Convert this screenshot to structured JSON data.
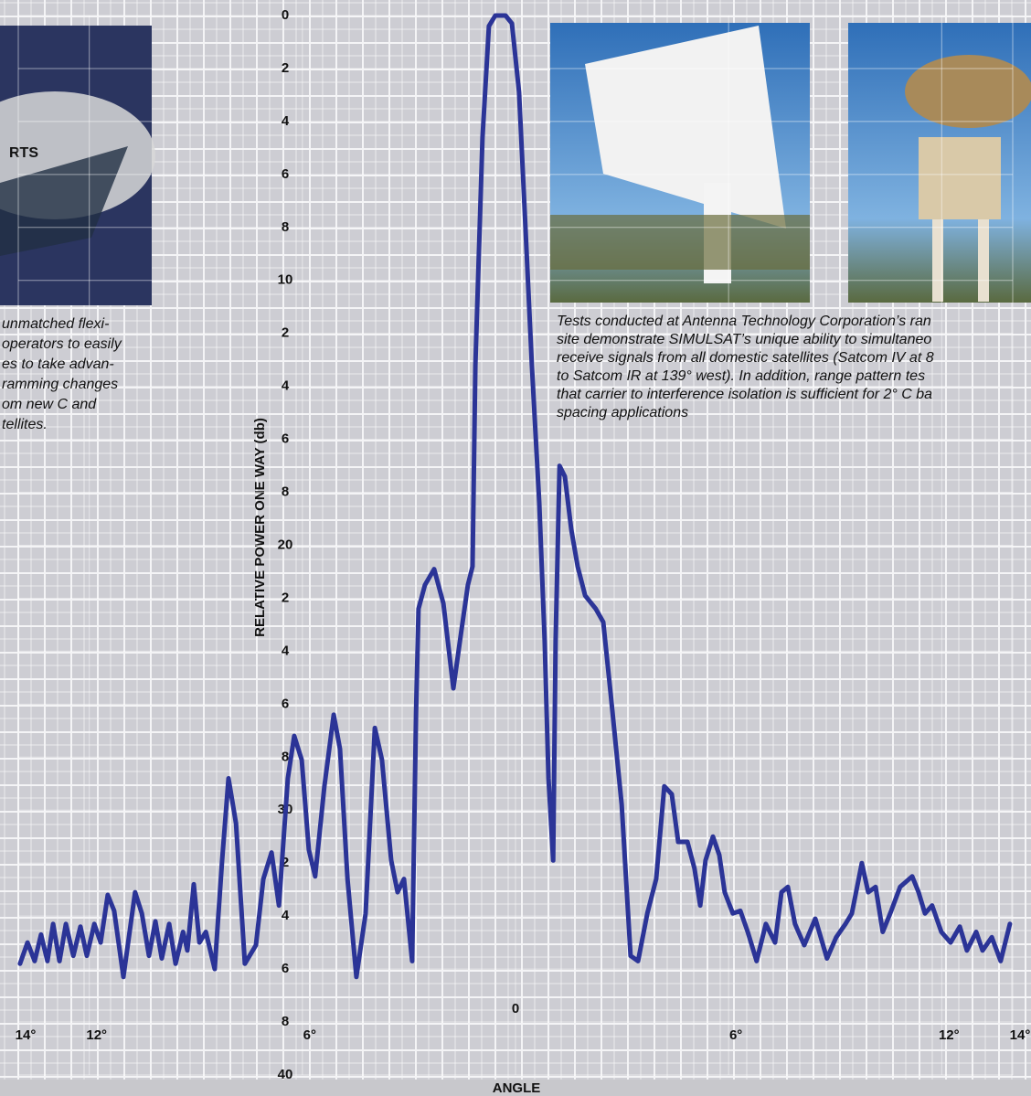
{
  "chart_data": {
    "type": "line",
    "xlabel": "ANGLE",
    "ylabel": "RELATIVE POWER ONE WAY (db)",
    "x": [
      -13.95,
      -13.74,
      -13.54,
      -13.36,
      -13.18,
      -13.02,
      -12.84,
      -12.66,
      -12.45,
      -12.25,
      -12.07,
      -11.86,
      -11.68,
      -11.48,
      -11.3,
      -11.04,
      -10.71,
      -10.52,
      -10.32,
      -10.14,
      -9.96,
      -9.75,
      -9.57,
      -9.36,
      -9.24,
      -9.06,
      -8.9,
      -8.72,
      -8.47,
      -8.26,
      -8.08,
      -7.87,
      -7.62,
      -7.31,
      -7.1,
      -6.87,
      -6.66,
      -6.41,
      -6.23,
      -6.02,
      -5.82,
      -5.64,
      -5.38,
      -5.12,
      -4.94,
      -4.73,
      -4.48,
      -4.22,
      -3.96,
      -3.76,
      -3.5,
      -3.32,
      -3.14,
      -2.91,
      -2.8,
      -2.73,
      -2.55,
      -2.29,
      -2.03,
      -1.75,
      -1.52,
      -1.34,
      -1.21,
      -1.13,
      -0.93,
      -0.75,
      -0.57,
      -0.28,
      -0.1,
      0.1,
      0.28,
      0.46,
      0.67,
      0.82,
      0.93,
      1.06,
      1.13,
      1.24,
      1.39,
      1.57,
      1.75,
      1.96,
      2.26,
      2.47,
      2.68,
      2.99,
      3.24,
      3.45,
      3.71,
      3.96,
      4.19,
      4.4,
      4.58,
      4.84,
      5.04,
      5.2,
      5.35,
      5.56,
      5.74,
      5.89,
      6.12,
      6.33,
      6.54,
      6.79,
      7.05,
      7.31,
      7.49,
      7.67,
      7.87,
      8.13,
      8.44,
      8.77,
      9.03,
      9.29,
      9.47,
      9.75,
      9.93,
      10.14,
      10.34,
      10.58,
      10.83,
      11.17,
      11.35,
      11.53,
      11.73,
      11.99,
      12.25,
      12.51,
      12.71,
      12.97,
      13.15,
      13.41,
      13.66,
      13.92
    ],
    "series": [
      {
        "color": "#2b3497",
        "values": [
          35.8,
          35.0,
          35.7,
          34.7,
          35.7,
          34.3,
          35.7,
          34.3,
          35.5,
          34.4,
          35.5,
          34.3,
          35.0,
          33.2,
          33.8,
          36.3,
          33.1,
          33.9,
          35.5,
          34.2,
          35.6,
          34.3,
          35.8,
          34.6,
          35.3,
          32.8,
          35.0,
          34.6,
          36.0,
          31.9,
          28.8,
          30.5,
          35.8,
          35.1,
          32.6,
          31.6,
          33.6,
          28.8,
          27.2,
          28.1,
          31.5,
          32.5,
          29.1,
          26.4,
          27.7,
          32.6,
          36.3,
          33.9,
          26.9,
          28.1,
          31.9,
          33.1,
          32.6,
          35.7,
          26.3,
          22.4,
          21.5,
          20.9,
          22.2,
          25.4,
          23.2,
          21.5,
          20.8,
          13.2,
          4.6,
          0.4,
          0,
          0,
          0.3,
          2.9,
          8.0,
          13.2,
          18.4,
          23.6,
          28.8,
          31.9,
          23.6,
          17.0,
          17.4,
          19.4,
          20.8,
          21.9,
          22.4,
          22.9,
          25.6,
          29.8,
          35.5,
          35.7,
          33.9,
          32.6,
          29.1,
          29.4,
          31.2,
          31.2,
          32.2,
          33.6,
          31.9,
          31.0,
          31.7,
          33.1,
          33.9,
          33.8,
          34.6,
          35.7,
          34.3,
          35.0,
          33.1,
          32.9,
          34.3,
          35.1,
          34.1,
          35.6,
          34.8,
          34.3,
          33.9,
          32.0,
          33.1,
          32.9,
          34.6,
          33.8,
          32.9,
          32.5,
          33.1,
          33.9,
          33.6,
          34.6,
          35.0,
          34.4,
          35.3,
          34.6,
          35.3,
          34.8,
          35.7,
          34.3
        ]
      }
    ],
    "xlim": [
      -14,
      14
    ],
    "xticks": [
      {
        "value": -14,
        "label": "14°"
      },
      {
        "value": -12,
        "label": "12°"
      },
      {
        "value": -6,
        "label": "6°"
      },
      0,
      {
        "value": 6,
        "label": "6°"
      },
      {
        "value": 12,
        "label": "12°"
      },
      {
        "value": 14,
        "label": "14°"
      }
    ],
    "ylim": [
      0,
      40
    ],
    "y_reversed": true,
    "yticks": [
      0,
      2,
      4,
      6,
      8,
      10,
      {
        "value": 12,
        "label": "2"
      },
      {
        "value": 14,
        "label": "4"
      },
      {
        "value": 16,
        "label": "6"
      },
      {
        "value": 18,
        "label": "8"
      },
      20,
      {
        "value": 22,
        "label": "2"
      },
      {
        "value": 24,
        "label": "4"
      },
      {
        "value": 26,
        "label": "6"
      },
      {
        "value": 28,
        "label": "8"
      },
      30,
      {
        "value": 32,
        "label": "2"
      },
      {
        "value": 34,
        "label": "4"
      },
      {
        "value": 36,
        "label": "6"
      },
      {
        "value": 38,
        "label": "8"
      },
      40
    ],
    "grid": true
  },
  "photo_text": "RTS",
  "captions": {
    "left": [
      "unmatched flexi-",
      "operators to easily",
      "es to take advan-",
      "ramming changes",
      "om new C and",
      "tellites."
    ],
    "right": [
      "Tests conducted at Antenna Technology Corporation’s ran",
      "site demonstrate SIMULSAT’s unique ability to simultaneo",
      "receive signals from all domestic satellites (Satcom IV at 8",
      "to Satcom IR at 139° west). In addition, range pattern tes",
      "that carrier to interference isolation is sufficient for 2° C ba",
      "spacing applications"
    ]
  }
}
